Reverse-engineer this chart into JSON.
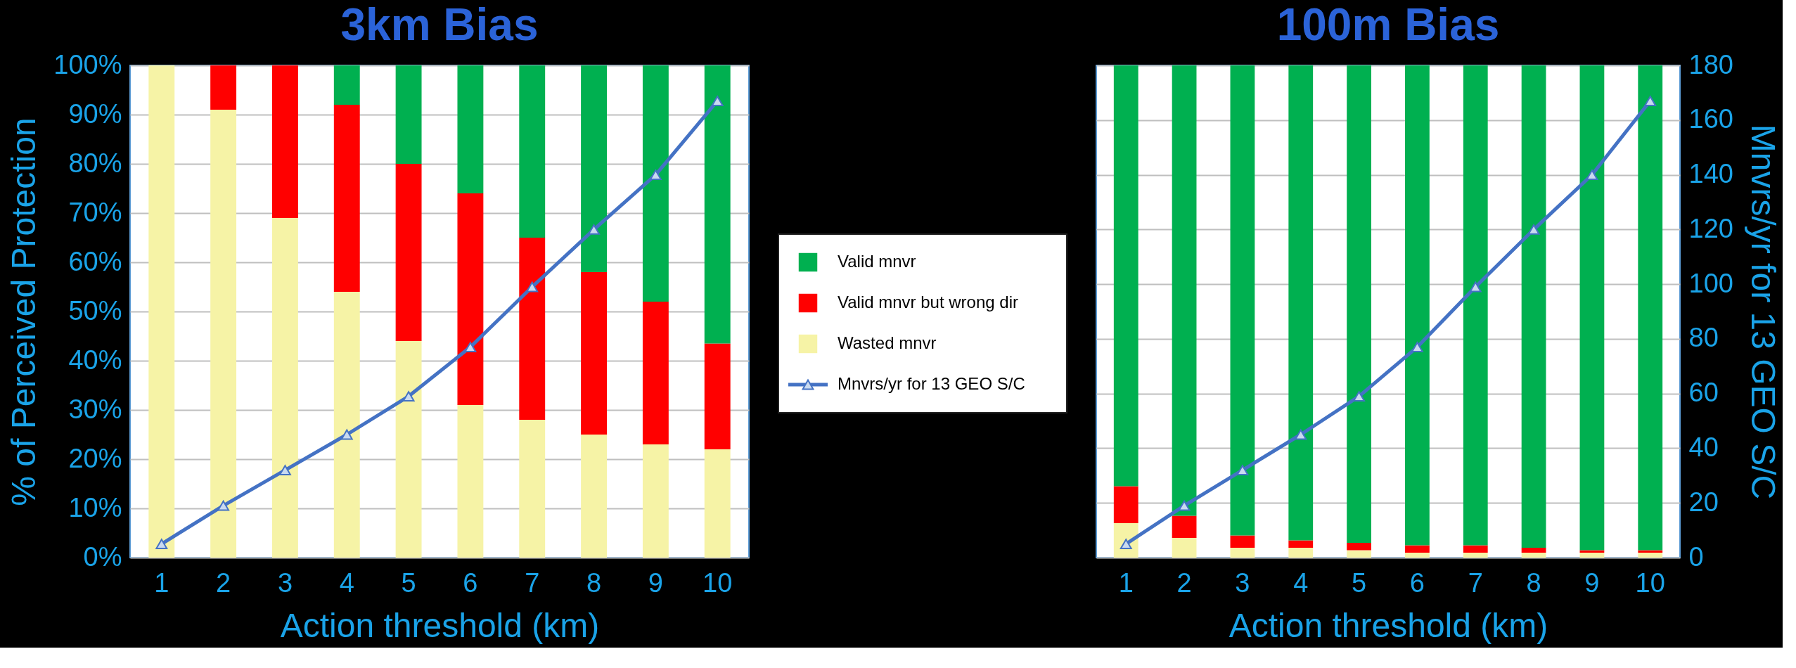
{
  "chart_data": [
    {
      "type": "bar",
      "title": "3km Bias",
      "xlabel": "Action threshold (km)",
      "ylabel": "% of Perceived Protection",
      "stacked": true,
      "categories": [
        "1",
        "2",
        "3",
        "4",
        "5",
        "6",
        "7",
        "8",
        "9",
        "10"
      ],
      "series": [
        {
          "name": "Wasted mnvr",
          "color": "#f6f3a6",
          "values": [
            100,
            91,
            69,
            54,
            44,
            31,
            28,
            25,
            23,
            22
          ]
        },
        {
          "name": "Valid mnvr but wrong dir",
          "color": "#ff0000",
          "values": [
            0,
            9,
            31,
            38,
            36,
            43,
            37,
            33,
            29,
            21.5
          ]
        },
        {
          "name": "Valid mnvr",
          "color": "#00b050",
          "values": [
            0,
            0,
            0,
            8,
            20,
            26,
            35,
            42,
            48,
            56.5
          ]
        },
        {
          "name": "Mnvrs/yr for 13 GEO S/C",
          "type": "line",
          "axis": "y2",
          "color": "#4472c4",
          "values": [
            5,
            19,
            32,
            45,
            59,
            77,
            99,
            120,
            140,
            167
          ]
        }
      ],
      "ylim": [
        0,
        100
      ],
      "yticks": [
        {
          "value": 0,
          "label": "0%"
        },
        {
          "value": 10,
          "label": "10%"
        },
        {
          "value": 20,
          "label": "20%"
        },
        {
          "value": 30,
          "label": "30%"
        },
        {
          "value": 40,
          "label": "40%"
        },
        {
          "value": 50,
          "label": "50%"
        },
        {
          "value": 60,
          "label": "60%"
        },
        {
          "value": 70,
          "label": "70%"
        },
        {
          "value": 80,
          "label": "80%"
        },
        {
          "value": 90,
          "label": "90%"
        },
        {
          "value": 100,
          "label": "100%"
        }
      ],
      "y2lim": [
        0,
        180
      ],
      "tick_labels": [
        "x",
        "y"
      ],
      "grid": "y",
      "legend": "right",
      "marker": "triangle",
      "line_style": "solid"
    },
    {
      "type": "bar",
      "title": "100m Bias",
      "xlabel": "Action threshold (km)",
      "y2label": "Mnvrs/yr for 13 GEO S/C",
      "stacked": true,
      "categories": [
        "1",
        "2",
        "3",
        "4",
        "5",
        "6",
        "7",
        "8",
        "9",
        "10"
      ],
      "series": [
        {
          "color": "#f6f3a6",
          "values": [
            7,
            4,
            2,
            2,
            1.5,
            1,
            1,
            1,
            1,
            1
          ]
        },
        {
          "color": "#ff0000",
          "values": [
            7.5,
            4.5,
            2.5,
            1.5,
            1.5,
            1.5,
            1.5,
            1,
            0.5,
            0.5
          ]
        },
        {
          "color": "#00b050",
          "values": [
            85.5,
            91.5,
            95.5,
            96.5,
            97,
            97.5,
            97.5,
            98,
            98.5,
            98.5
          ]
        },
        {
          "type": "line",
          "axis": "y2",
          "color": "#4472c4",
          "values": [
            5,
            19,
            32,
            45,
            59,
            77,
            99,
            120,
            140,
            167
          ]
        }
      ],
      "ylim": [
        0,
        100
      ],
      "y2lim": [
        0,
        180
      ],
      "y2ticks": [
        0,
        20,
        40,
        60,
        80,
        100,
        120,
        140,
        160,
        180
      ],
      "tick_labels": [
        "x",
        "y2"
      ],
      "grid": "y2",
      "marker": "triangle",
      "line_style": "solid"
    }
  ]
}
